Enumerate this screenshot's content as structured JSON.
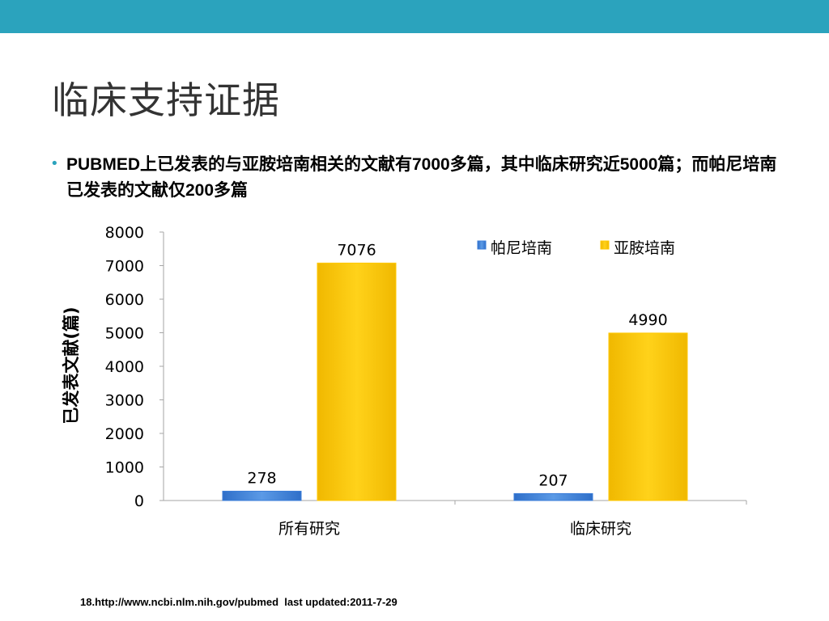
{
  "slide": {
    "title": "临床支持证据",
    "bullet_text": "PUBMED上已发表的与亚胺培南相关的文献有7000多篇，其中临床研究近5000篇；而帕尼培南已发表的文献仅200多篇",
    "footnote": "18.http://www.ncbi.nlm.nih.gov/pubmed  last updated:2011-7-29",
    "colors": {
      "top_bar": "#2ba3bd",
      "bullet": "#2ba3bd"
    }
  },
  "chart_data": {
    "type": "bar",
    "title": "",
    "xlabel": "",
    "ylabel": "已发表文献(篇)",
    "categories": [
      "所有研究",
      "临床研究"
    ],
    "series": [
      {
        "name": "帕尼培南",
        "values": [
          278,
          207
        ],
        "color": "#3b7dd8"
      },
      {
        "name": "亚胺培南",
        "values": [
          7076,
          4990
        ],
        "color": "#ffc800"
      }
    ],
    "ylim": [
      0,
      8000
    ],
    "yticks": [
      0,
      1000,
      2000,
      3000,
      4000,
      5000,
      6000,
      7000,
      8000
    ],
    "data_labels": true,
    "grid": false,
    "legend_position": "top-right"
  }
}
